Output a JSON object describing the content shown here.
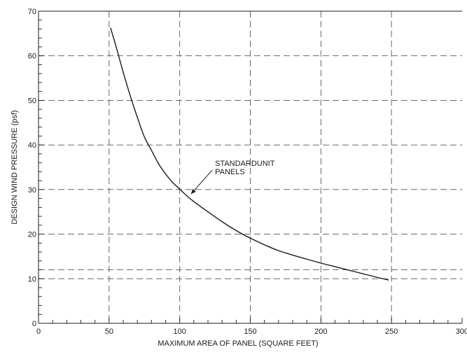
{
  "chart_data": {
    "type": "line",
    "title": "",
    "xlabel": "MAXIMUM AREA OF PANEL (SQUARE FEET)",
    "ylabel": "DESIGN WIND PRESSURE (psf)",
    "xlim": [
      0,
      300
    ],
    "ylim": [
      0,
      70
    ],
    "xticks": [
      0,
      50,
      100,
      150,
      200,
      250,
      300
    ],
    "yticks": [
      0,
      10,
      20,
      30,
      40,
      50,
      60,
      70
    ],
    "x_tick_labels": [
      "0",
      "50",
      "100",
      "150",
      "200",
      "250",
      "300"
    ],
    "y_tick_labels": [
      "0",
      "10",
      "20",
      "30",
      "40",
      "50",
      "60",
      "70"
    ],
    "grid": true,
    "extra_reference_line_y": 12,
    "series": [
      {
        "x": [
          51,
          55,
          60,
          65,
          70,
          75,
          80,
          85,
          90,
          95,
          100,
          105,
          110,
          120,
          130,
          140,
          150,
          160,
          170,
          180,
          190,
          200,
          210,
          220,
          230,
          240,
          248
        ],
        "y": [
          66.3,
          62.0,
          56.3,
          51.0,
          46.2,
          41.8,
          38.8,
          35.8,
          33.5,
          31.6,
          30.1,
          28.6,
          27.3,
          25.0,
          22.8,
          20.8,
          19.1,
          17.6,
          16.3,
          15.3,
          14.4,
          13.5,
          12.7,
          11.9,
          11.1,
          10.3,
          9.7
        ]
      }
    ],
    "annotations": [
      {
        "text_lines": [
          "STANDARDUNIT",
          "PANELS"
        ],
        "arrow_to": [
          108,
          29.0
        ]
      }
    ]
  }
}
